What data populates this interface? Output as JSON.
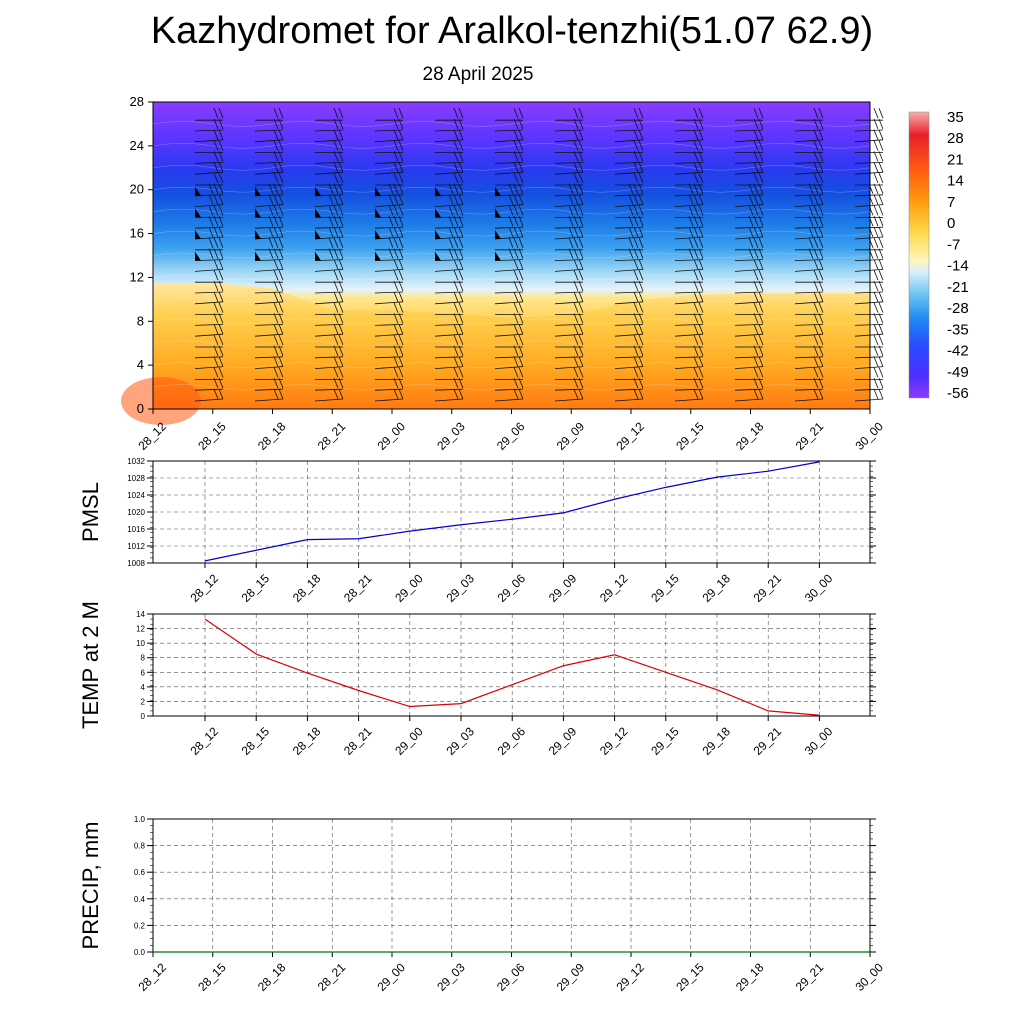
{
  "title": "Kazhydromet for Aralkol-tenzhi(51.07 62.9)",
  "subtitle": "28 April 2025",
  "time_labels": [
    "28_12",
    "28_15",
    "28_18",
    "28_21",
    "29_00",
    "29_03",
    "29_06",
    "29_09",
    "29_12",
    "29_15",
    "29_18",
    "29_21",
    "30_00"
  ],
  "chart_data": [
    {
      "type": "heatmap",
      "title": "",
      "xlabel": "",
      "ylabel": "",
      "x": [
        "28_12",
        "28_15",
        "28_18",
        "28_21",
        "29_00",
        "29_03",
        "29_06",
        "29_09",
        "29_12",
        "29_15",
        "29_18",
        "29_21",
        "30_00"
      ],
      "ylim": [
        0,
        28
      ],
      "yticks": [
        0,
        4,
        8,
        12,
        16,
        20,
        24,
        28
      ],
      "freezing_level": [
        11.4,
        11.5,
        11.0,
        9.0,
        9.0,
        8.7,
        8.3,
        8.6,
        9.8,
        10.4,
        10.5,
        10.5,
        10.5
      ],
      "colorbar": {
        "labels": [
          "35",
          "28",
          "21",
          "14",
          "7",
          "0",
          "-7",
          "-14",
          "-21",
          "-28",
          "-35",
          "-42",
          "-49",
          "-56"
        ],
        "colors": [
          "#f4a3a3",
          "#e8202a",
          "#ff7a00",
          "#ffcc33",
          "#ffffff",
          "#8fd3f5",
          "#1f8fff",
          "#3333ff",
          "#8030ff"
        ]
      },
      "wind_barbs": "wind profile barbs at each time step"
    },
    {
      "type": "line",
      "ylabel": "PMSL",
      "categories": [
        "28_12",
        "28_15",
        "28_18",
        "28_21",
        "29_00",
        "29_03",
        "29_06",
        "29_09",
        "29_12",
        "29_15",
        "29_18",
        "29_21",
        "30_00"
      ],
      "series": [
        {
          "values": [
            1008.5,
            1011.0,
            1013.5,
            1013.7,
            1015.5,
            1017.0,
            1018.3,
            1019.8,
            1023.0,
            1025.8,
            1028.2,
            1029.6,
            1031.8
          ],
          "color": "#0000cc"
        }
      ],
      "ylim": [
        1008,
        1032
      ],
      "yticks": [
        1008,
        1012,
        1016,
        1020,
        1024,
        1028,
        1032
      ],
      "grid": true
    },
    {
      "type": "line",
      "ylabel": "TEMP at 2 M",
      "categories": [
        "28_12",
        "28_15",
        "28_18",
        "28_21",
        "29_00",
        "29_03",
        "29_06",
        "29_09",
        "29_12",
        "29_15",
        "29_18",
        "29_21",
        "30_00"
      ],
      "series": [
        {
          "values": [
            13.3,
            8.5,
            5.9,
            3.5,
            1.3,
            1.7,
            4.3,
            6.9,
            8.4,
            6.0,
            3.6,
            0.7,
            0.1
          ],
          "color": "#dd0000"
        }
      ],
      "ylim": [
        0,
        14
      ],
      "yticks": [
        0,
        2,
        4,
        6,
        8,
        10,
        12,
        14
      ],
      "grid": true
    },
    {
      "type": "line",
      "ylabel": "PRECIP, mm",
      "categories": [
        "28_12",
        "28_15",
        "28_18",
        "28_21",
        "29_00",
        "29_03",
        "29_06",
        "29_09",
        "29_12",
        "29_15",
        "29_18",
        "29_21",
        "30_00"
      ],
      "series": [
        {
          "values": [
            0,
            0,
            0,
            0,
            0,
            0,
            0,
            0,
            0,
            0,
            0,
            0,
            0
          ],
          "color": "#007700"
        }
      ],
      "ylim": [
        0,
        1
      ],
      "yticks": [
        "0.0",
        "0.2",
        "0.4",
        "0.6",
        "0.8",
        "1.0"
      ],
      "grid": true
    }
  ]
}
